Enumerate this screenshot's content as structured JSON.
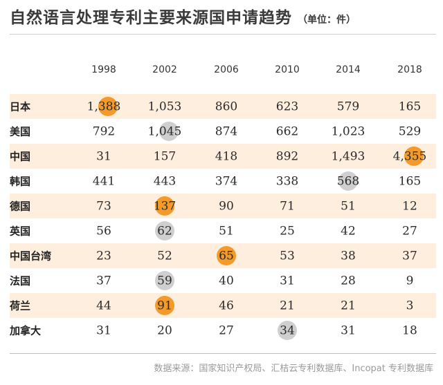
{
  "title": "自然语言处理专利主要来源国申请趋势",
  "subtitle": "（单位：件）",
  "source": "数据来源：国家知识产权局、汇桔云专利数据库、Incopat 专利数据库",
  "colors": {
    "row_stripe": "#fdeedd",
    "highlight_max": "#f39a2a",
    "highlight_secondary": "#cfcfcf"
  },
  "chart_data": {
    "type": "table",
    "title": "自然语言处理专利主要来源国申请趋势",
    "unit": "（单位：件）",
    "columns": [
      "1998",
      "2002",
      "2006",
      "2010",
      "2014",
      "2018"
    ],
    "rows": [
      {
        "name": "日本",
        "values": [
          1388,
          1053,
          860,
          623,
          579,
          165
        ],
        "display": [
          "1,388",
          "1,053",
          "860",
          "623",
          "579",
          "165"
        ],
        "orange": [
          0
        ],
        "gray": []
      },
      {
        "name": "美国",
        "values": [
          792,
          1045,
          874,
          662,
          1023,
          529
        ],
        "display": [
          "792",
          "1,045",
          "874",
          "662",
          "1,023",
          "529"
        ],
        "orange": [],
        "gray": [
          1
        ]
      },
      {
        "name": "中国",
        "values": [
          31,
          157,
          418,
          892,
          1493,
          4355
        ],
        "display": [
          "31",
          "157",
          "418",
          "892",
          "1,493",
          "4,355"
        ],
        "orange": [
          5
        ],
        "gray": []
      },
      {
        "name": "韩国",
        "values": [
          441,
          443,
          374,
          338,
          568,
          165
        ],
        "display": [
          "441",
          "443",
          "374",
          "338",
          "568",
          "165"
        ],
        "orange": [],
        "gray": [
          4
        ]
      },
      {
        "name": "德国",
        "values": [
          73,
          137,
          90,
          71,
          51,
          12
        ],
        "display": [
          "73",
          "137",
          "90",
          "71",
          "51",
          "12"
        ],
        "orange": [
          1
        ],
        "gray": []
      },
      {
        "name": "英国",
        "values": [
          56,
          62,
          51,
          25,
          42,
          27
        ],
        "display": [
          "56",
          "62",
          "51",
          "25",
          "42",
          "27"
        ],
        "orange": [],
        "gray": [
          1
        ]
      },
      {
        "name": "中国台湾",
        "values": [
          23,
          52,
          65,
          53,
          38,
          37
        ],
        "display": [
          "23",
          "52",
          "65",
          "53",
          "38",
          "37"
        ],
        "orange": [
          2
        ],
        "gray": []
      },
      {
        "name": "法国",
        "values": [
          37,
          59,
          40,
          31,
          28,
          9
        ],
        "display": [
          "37",
          "59",
          "40",
          "31",
          "28",
          "9"
        ],
        "orange": [],
        "gray": [
          1
        ]
      },
      {
        "name": "荷兰",
        "values": [
          44,
          91,
          46,
          21,
          21,
          3
        ],
        "display": [
          "44",
          "91",
          "46",
          "21",
          "21",
          "3"
        ],
        "orange": [
          1
        ],
        "gray": []
      },
      {
        "name": "加拿大",
        "values": [
          31,
          20,
          27,
          34,
          31,
          18
        ],
        "display": [
          "31",
          "20",
          "27",
          "34",
          "31",
          "18"
        ],
        "orange": [],
        "gray": [
          3
        ]
      }
    ]
  }
}
